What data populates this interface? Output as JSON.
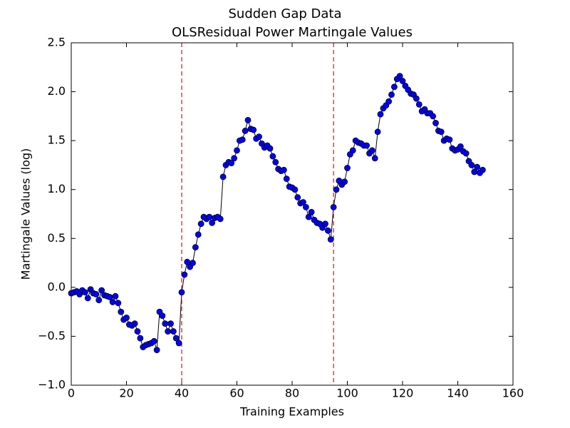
{
  "chart_data": {
    "type": "line",
    "title": "Sudden Gap Data",
    "subtitle": "OLSResidual Power Martingale Values",
    "x_label": "Training Examples",
    "y_label": "Martingale Values (log)",
    "x": [
      0,
      1,
      2,
      3,
      4,
      5,
      6,
      7,
      8,
      9,
      10,
      11,
      12,
      13,
      14,
      15,
      16,
      17,
      18,
      19,
      20,
      21,
      22,
      23,
      24,
      25,
      26,
      27,
      28,
      29,
      30,
      31,
      32,
      33,
      34,
      35,
      36,
      37,
      38,
      39,
      40,
      41,
      42,
      43,
      44,
      45,
      46,
      47,
      48,
      49,
      50,
      51,
      52,
      53,
      54,
      55,
      56,
      57,
      58,
      59,
      60,
      61,
      62,
      63,
      64,
      65,
      66,
      67,
      68,
      69,
      70,
      71,
      72,
      73,
      74,
      75,
      76,
      77,
      78,
      79,
      80,
      81,
      82,
      83,
      84,
      85,
      86,
      87,
      88,
      89,
      90,
      91,
      92,
      93,
      94,
      95,
      96,
      97,
      98,
      99,
      100,
      101,
      102,
      103,
      104,
      105,
      106,
      107,
      108,
      109,
      110,
      111,
      112,
      113,
      114,
      115,
      116,
      117,
      118,
      119,
      120,
      121,
      122,
      123,
      124,
      125,
      126,
      127,
      128,
      129,
      130,
      131,
      132,
      133,
      134,
      135,
      136,
      137,
      138,
      139,
      140,
      141,
      142,
      143,
      144,
      145,
      146,
      147,
      148,
      149
    ],
    "values": [
      -0.06,
      -0.05,
      -0.04,
      -0.07,
      -0.03,
      -0.05,
      -0.11,
      -0.02,
      -0.06,
      -0.07,
      -0.13,
      -0.03,
      -0.08,
      -0.09,
      -0.1,
      -0.15,
      -0.09,
      -0.16,
      -0.25,
      -0.33,
      -0.31,
      -0.38,
      -0.39,
      -0.37,
      -0.45,
      -0.52,
      -0.61,
      -0.59,
      -0.58,
      -0.57,
      -0.55,
      -0.64,
      -0.25,
      -0.29,
      -0.37,
      -0.45,
      -0.37,
      -0.45,
      -0.52,
      -0.57,
      -0.05,
      0.13,
      0.26,
      0.21,
      0.25,
      0.41,
      0.54,
      0.65,
      0.72,
      0.7,
      0.72,
      0.66,
      0.71,
      0.72,
      0.7,
      1.13,
      1.25,
      1.28,
      1.27,
      1.32,
      1.4,
      1.5,
      1.51,
      1.6,
      1.71,
      1.62,
      1.61,
      1.52,
      1.54,
      1.47,
      1.43,
      1.45,
      1.42,
      1.34,
      1.28,
      1.21,
      1.19,
      1.2,
      1.11,
      1.03,
      1.02,
      1.0,
      0.92,
      0.86,
      0.87,
      0.82,
      0.72,
      0.77,
      0.69,
      0.66,
      0.65,
      0.61,
      0.65,
      0.58,
      0.49,
      0.82,
      1.0,
      1.09,
      1.05,
      1.08,
      1.22,
      1.36,
      1.4,
      1.5,
      1.48,
      1.47,
      1.45,
      1.45,
      1.37,
      1.4,
      1.32,
      1.59,
      1.77,
      1.83,
      1.86,
      1.9,
      1.97,
      2.05,
      2.13,
      2.16,
      2.11,
      2.06,
      2.02,
      1.98,
      1.97,
      1.93,
      1.87,
      1.8,
      1.82,
      1.78,
      1.78,
      1.75,
      1.68,
      1.6,
      1.59,
      1.5,
      1.52,
      1.51,
      1.42,
      1.4,
      1.41,
      1.44,
      1.39,
      1.37,
      1.29,
      1.25,
      1.18,
      1.23,
      1.17,
      1.2
    ],
    "line_color": "#000000",
    "marker_color": "#0000ff",
    "vlines": [
      40,
      95
    ],
    "vline_color": "#ff0000",
    "xlim": [
      0,
      160
    ],
    "ylim": [
      -1.0,
      2.5
    ],
    "xticks": [
      0,
      20,
      40,
      60,
      80,
      100,
      120,
      140,
      160
    ],
    "yticks": [
      {
        "value": -1.0,
        "label": "−1.0"
      },
      {
        "value": -0.5,
        "label": "−0.5"
      },
      {
        "value": 0,
        "label": "0.0"
      },
      0.5,
      {
        "value": 1,
        "label": "1.0"
      },
      1.5,
      {
        "value": 2,
        "label": "2.0"
      },
      2.5
    ],
    "grid": false
  }
}
